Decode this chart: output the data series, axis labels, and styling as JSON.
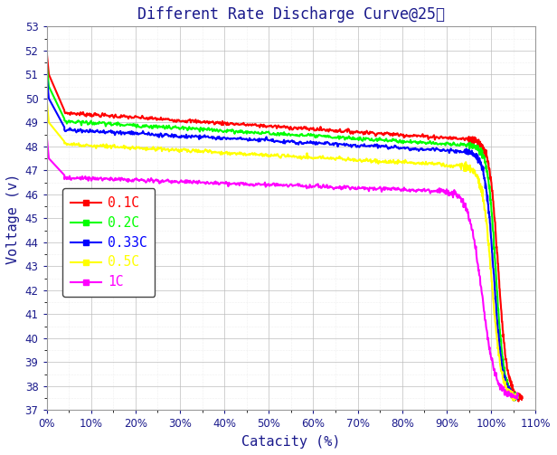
{
  "title": "Different Rate Discharge Curve@25℃",
  "xlabel": "Catacity (%)",
  "ylabel": "Voltage (v)",
  "ylim": [
    37,
    53
  ],
  "xlim": [
    0,
    110
  ],
  "yticks": [
    37,
    38,
    39,
    40,
    41,
    42,
    43,
    44,
    45,
    46,
    47,
    48,
    49,
    50,
    51,
    52,
    53
  ],
  "xticks": [
    0,
    10,
    20,
    30,
    40,
    50,
    60,
    70,
    80,
    90,
    100,
    110
  ],
  "curves": [
    {
      "label": "0.1C",
      "color": "#FF0000",
      "spike_v": 52.0,
      "plateau_start_v": 49.4,
      "plateau_end_v": 48.3,
      "drop_start_x": 95,
      "drop_end_x": 107,
      "final_v": 37.5,
      "noise": 0.04
    },
    {
      "label": "0.2C",
      "color": "#00FF00",
      "spike_v": 51.5,
      "plateau_start_v": 49.05,
      "plateau_end_v": 48.05,
      "drop_start_x": 95,
      "drop_end_x": 106,
      "final_v": 37.5,
      "noise": 0.04
    },
    {
      "label": "0.33C",
      "color": "#0000FF",
      "spike_v": 51.0,
      "plateau_start_v": 48.7,
      "plateau_end_v": 47.8,
      "drop_start_x": 94,
      "drop_end_x": 106,
      "final_v": 37.5,
      "noise": 0.04
    },
    {
      "label": "0.5C",
      "color": "#FFFF00",
      "spike_v": 50.0,
      "plateau_start_v": 48.1,
      "plateau_end_v": 47.2,
      "drop_start_x": 93,
      "drop_end_x": 106,
      "final_v": 37.5,
      "noise": 0.04
    },
    {
      "label": "1C",
      "color": "#FF00FF",
      "spike_v": 48.5,
      "plateau_start_v": 46.7,
      "plateau_end_v": 46.15,
      "drop_start_x": 88,
      "drop_end_x": 106,
      "final_v": 37.5,
      "noise": 0.04
    }
  ],
  "bg_color": "#FFFFFF",
  "grid_major_color": "#BBBBBB",
  "grid_minor_color": "#DDDDDD",
  "title_color": "#1a1a8c",
  "axis_label_color": "#1a1a8c",
  "tick_color": "#1a1a8c",
  "legend_text_colors": [
    "#FF0000",
    "#00FF00",
    "#0000FF",
    "#FFFF00",
    "#FF00FF"
  ],
  "linewidth": 1.5
}
